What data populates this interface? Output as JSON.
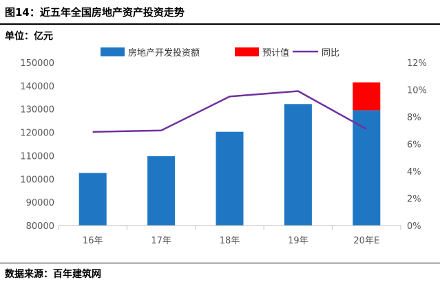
{
  "header": {
    "title": "图14：近五年全国房地产资产投资走势"
  },
  "unit_label": "单位：亿元",
  "source": "数据来源：百年建筑网",
  "colors": {
    "bar": "#1f77c4",
    "forecast": "#ff0000",
    "line": "#7030a0",
    "axis": "#bfbfbf"
  },
  "chart_data": {
    "type": "bar",
    "categories": [
      "16年",
      "17年",
      "18年",
      "19年",
      "20年E"
    ],
    "series": [
      {
        "name": "房地产开发投资额",
        "type": "bar",
        "axis": "left",
        "values": [
          102581,
          109799,
          120264,
          132194,
          129500
        ]
      },
      {
        "name": "预计值",
        "type": "bar-stacked",
        "axis": "left",
        "values": [
          0,
          0,
          0,
          0,
          12000
        ]
      },
      {
        "name": "同比",
        "type": "line",
        "axis": "right",
        "values": [
          6.9,
          7.0,
          9.5,
          9.9,
          7.1
        ]
      }
    ],
    "ylim": [
      80000,
      150000
    ],
    "yticks": [
      "150000",
      "140000",
      "130000",
      "120000",
      "110000",
      "100000",
      "90000",
      "80000"
    ],
    "y2lim": [
      0,
      12
    ],
    "y2ticks": [
      "12%",
      "10%",
      "8%",
      "6%",
      "4%",
      "2%",
      "0%"
    ],
    "legend": "top"
  }
}
